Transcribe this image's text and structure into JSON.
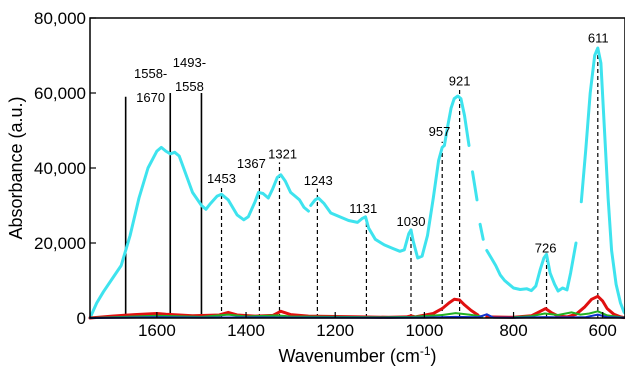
{
  "chart_data": {
    "type": "line",
    "title": "",
    "xlabel": "Wavenumber (cm",
    "xlabel_sup": "-1",
    "xlabel_suffix": ")",
    "ylabel": "Absorbance (a.u.)",
    "x_reversed": true,
    "xlim": [
      1750,
      550
    ],
    "ylim": [
      0,
      80000
    ],
    "x_ticks": [
      1600,
      1400,
      1200,
      1000,
      800,
      600
    ],
    "x_tick_labels": [
      "1600",
      "1400",
      "1200",
      "1000",
      "800",
      "600"
    ],
    "y_ticks": [
      0,
      20000,
      40000,
      60000,
      80000
    ],
    "y_tick_labels": [
      "0",
      "20,000",
      "40,000",
      "60,000",
      "80,000"
    ],
    "colors": {
      "main": "#3EE3EE",
      "red": "#E01010",
      "green": "#22B022",
      "blue": "#1030D0"
    },
    "peak_annotations": [
      {
        "x": 1670,
        "line_top": 59000,
        "style": "solid",
        "lines": []
      },
      {
        "x": 1570,
        "line_top": 60000,
        "style": "solid",
        "lines": [
          "1558-",
          "1670"
        ],
        "label_x": 1614,
        "label_y": 64000
      },
      {
        "x": 1500,
        "line_top": 60000,
        "style": "solid",
        "lines": [
          "1493-",
          "1558"
        ],
        "label_x": 1527,
        "label_y": 67000
      },
      {
        "x": 1455,
        "line_top": 35000,
        "style": "dashed",
        "lines": [
          "1453"
        ],
        "label_x": 1455,
        "label_y": 36000
      },
      {
        "x": 1370,
        "line_top": 39000,
        "style": "dashed",
        "lines": [
          "1367"
        ],
        "label_x": 1388,
        "label_y": 40000
      },
      {
        "x": 1325,
        "line_top": 41500,
        "style": "dashed",
        "lines": [
          "1321"
        ],
        "label_x": 1318,
        "label_y": 42500
      },
      {
        "x": 1240,
        "line_top": 34500,
        "style": "dashed",
        "lines": [
          "1243"
        ],
        "label_x": 1238,
        "label_y": 35500
      },
      {
        "x": 1130,
        "line_top": 27000,
        "style": "dashed",
        "lines": [
          "1131"
        ],
        "label_x": 1137,
        "label_y": 28000
      },
      {
        "x": 1030,
        "line_top": 23000,
        "style": "dashed",
        "lines": [
          "1030"
        ],
        "label_x": 1030,
        "label_y": 24500
      },
      {
        "x": 960,
        "line_top": 47000,
        "style": "dashed",
        "lines": [
          "957"
        ],
        "label_x": 966,
        "label_y": 48500
      },
      {
        "x": 921,
        "line_top": 61000,
        "style": "dashed",
        "lines": [
          "921"
        ],
        "label_x": 921,
        "label_y": 62000
      },
      {
        "x": 726,
        "line_top": 16500,
        "style": "dashed",
        "lines": [
          "726"
        ],
        "label_x": 728,
        "label_y": 17500
      },
      {
        "x": 611,
        "line_top": 72000,
        "style": "dashed",
        "lines": [
          "611"
        ],
        "label_x": 610,
        "label_y": 73500
      }
    ],
    "series": [
      {
        "color_key": "main",
        "width": 3,
        "segments": [
          [
            [
              1750,
              0
            ],
            [
              1735,
              4000
            ],
            [
              1720,
              7000
            ],
            [
              1700,
              10500
            ],
            [
              1680,
              14000
            ],
            [
              1660,
              22000
            ],
            [
              1640,
              32000
            ],
            [
              1620,
              40000
            ],
            [
              1600,
              44500
            ],
            [
              1590,
              45500
            ],
            [
              1580,
              44500
            ],
            [
              1570,
              43800
            ],
            [
              1560,
              44200
            ],
            [
              1550,
              43200
            ],
            [
              1540,
              40000
            ],
            [
              1520,
              33500
            ],
            [
              1500,
              30000
            ],
            [
              1490,
              29000
            ],
            [
              1480,
              30500
            ],
            [
              1465,
              32500
            ],
            [
              1455,
              33000
            ],
            [
              1440,
              31500
            ],
            [
              1420,
              27500
            ],
            [
              1405,
              26200
            ],
            [
              1395,
              27000
            ],
            [
              1380,
              31000
            ],
            [
              1372,
              33500
            ],
            [
              1362,
              33200
            ],
            [
              1350,
              32000
            ],
            [
              1340,
              34500
            ],
            [
              1330,
              37500
            ],
            [
              1322,
              38200
            ],
            [
              1312,
              36500
            ],
            [
              1300,
              33500
            ],
            [
              1290,
              32500
            ],
            [
              1280,
              31500
            ],
            [
              1270,
              29500
            ],
            [
              1260,
              28500
            ]
          ],
          [
            [
              1255,
              30000
            ],
            [
              1245,
              31500
            ],
            [
              1238,
              32000
            ],
            [
              1225,
              30500
            ],
            [
              1210,
              28000
            ],
            [
              1190,
              27000
            ],
            [
              1170,
              26000
            ],
            [
              1150,
              25500
            ],
            [
              1140,
              26500
            ],
            [
              1132,
              27000
            ],
            [
              1125,
              24000
            ],
            [
              1110,
              21000
            ],
            [
              1090,
              19500
            ],
            [
              1070,
              18500
            ],
            [
              1055,
              17800
            ],
            [
              1045,
              18200
            ],
            [
              1035,
              22500
            ],
            [
              1030,
              23500
            ],
            [
              1025,
              20500
            ],
            [
              1015,
              16000
            ],
            [
              1005,
              16500
            ],
            [
              993,
              22000
            ],
            [
              980,
              32000
            ],
            [
              968,
              42000
            ],
            [
              960,
              45500
            ],
            [
              955,
              46000
            ],
            [
              948,
              51000
            ],
            [
              940,
              56000
            ],
            [
              933,
              58500
            ],
            [
              925,
              59200
            ],
            [
              918,
              58500
            ],
            [
              910,
              54000
            ],
            [
              900,
              46000
            ]
          ],
          [
            [
              892,
              39000
            ],
            [
              882,
              31500
            ]
          ],
          [
            [
              875,
              25000
            ],
            [
              868,
              21000
            ]
          ],
          [
            [
              860,
              18000
            ],
            [
              850,
              16000
            ],
            [
              840,
              14000
            ],
            [
              830,
              11500
            ],
            [
              820,
              10000
            ],
            [
              810,
              9000
            ],
            [
              800,
              8000
            ],
            [
              785,
              7600
            ],
            [
              770,
              7800
            ],
            [
              760,
              7300
            ],
            [
              750,
              8500
            ],
            [
              740,
              13000
            ],
            [
              732,
              16000
            ],
            [
              726,
              17000
            ],
            [
              718,
              12000
            ],
            [
              708,
              9000
            ],
            [
              700,
              7200
            ],
            [
              690,
              8000
            ],
            [
              680,
              7500
            ],
            [
              672,
              12000
            ],
            [
              660,
              20000
            ]
          ],
          [
            [
              648,
              31000
            ],
            [
              638,
              45000
            ],
            [
              628,
              60000
            ],
            [
              618,
              70000
            ],
            [
              611,
              72000
            ],
            [
              604,
              68000
            ],
            [
              596,
              50000
            ],
            [
              588,
              32000
            ],
            [
              580,
              18000
            ],
            [
              570,
              9000
            ],
            [
              560,
              4000
            ],
            [
              552,
              1500
            ]
          ]
        ]
      },
      {
        "color_key": "red",
        "width": 3,
        "segments": [
          [
            [
              1750,
              0
            ],
            [
              1700,
              500
            ],
            [
              1650,
              900
            ],
            [
              1600,
              1200
            ],
            [
              1580,
              1000
            ],
            [
              1520,
              600
            ],
            [
              1460,
              800
            ],
            [
              1440,
              1500
            ],
            [
              1420,
              800
            ],
            [
              1380,
              500
            ],
            [
              1340,
              700
            ],
            [
              1322,
              1800
            ],
            [
              1300,
              900
            ],
            [
              1260,
              500
            ],
            [
              1200,
              400
            ],
            [
              1140,
              300
            ],
            [
              1080,
              200
            ],
            [
              1040,
              300
            ],
            [
              1030,
              600
            ],
            [
              1020,
              300
            ],
            [
              980,
              1200
            ],
            [
              960,
              2500
            ],
            [
              945,
              4000
            ],
            [
              933,
              5000
            ],
            [
              921,
              4800
            ],
            [
              910,
              3500
            ],
            [
              895,
              2000
            ],
            [
              880,
              800
            ]
          ],
          [
            [
              860,
              300
            ],
            [
              800,
              200
            ],
            [
              760,
              600
            ],
            [
              740,
              1800
            ],
            [
              728,
              2500
            ],
            [
              716,
              1500
            ],
            [
              700,
              500
            ],
            [
              680,
              300
            ],
            [
              660,
              1000
            ],
            [
              640,
              3000
            ],
            [
              625,
              5000
            ],
            [
              611,
              5800
            ],
            [
              600,
              4500
            ],
            [
              590,
              2500
            ],
            [
              575,
              1000
            ],
            [
              560,
              300
            ],
            [
              552,
              100
            ]
          ]
        ]
      },
      {
        "color_key": "green",
        "width": 2,
        "segments": [
          [
            [
              1750,
              0
            ],
            [
              1600,
              600
            ],
            [
              1500,
              300
            ],
            [
              1460,
              700
            ],
            [
              1440,
              900
            ],
            [
              1400,
              400
            ],
            [
              1330,
              700
            ],
            [
              1300,
              400
            ],
            [
              1200,
              300
            ],
            [
              1100,
              200
            ],
            [
              1030,
              300
            ],
            [
              960,
              800
            ],
            [
              930,
              1300
            ],
            [
              900,
              900
            ],
            [
              870,
              400
            ]
          ],
          [
            [
              800,
              200
            ],
            [
              760,
              500
            ],
            [
              730,
              1200
            ],
            [
              700,
              800
            ],
            [
              670,
              1500
            ],
            [
              650,
              900
            ],
            [
              630,
              1200
            ],
            [
              611,
              1800
            ],
            [
              590,
              700
            ],
            [
              552,
              100
            ]
          ]
        ]
      },
      {
        "color_key": "blue",
        "width": 2,
        "segments": [
          [
            [
              1750,
              0
            ],
            [
              1600,
              200
            ],
            [
              1500,
              100
            ],
            [
              1400,
              150
            ],
            [
              1300,
              120
            ],
            [
              1200,
              100
            ],
            [
              1100,
              80
            ],
            [
              1000,
              100
            ],
            [
              930,
              300
            ],
            [
              880,
              200
            ],
            [
              860,
              1000
            ],
            [
              845,
              100
            ],
            [
              800,
              80
            ],
            [
              730,
              250
            ],
            [
              690,
              150
            ],
            [
              640,
              200
            ],
            [
              611,
              900
            ],
            [
              590,
              250
            ],
            [
              552,
              50
            ]
          ]
        ]
      }
    ]
  }
}
